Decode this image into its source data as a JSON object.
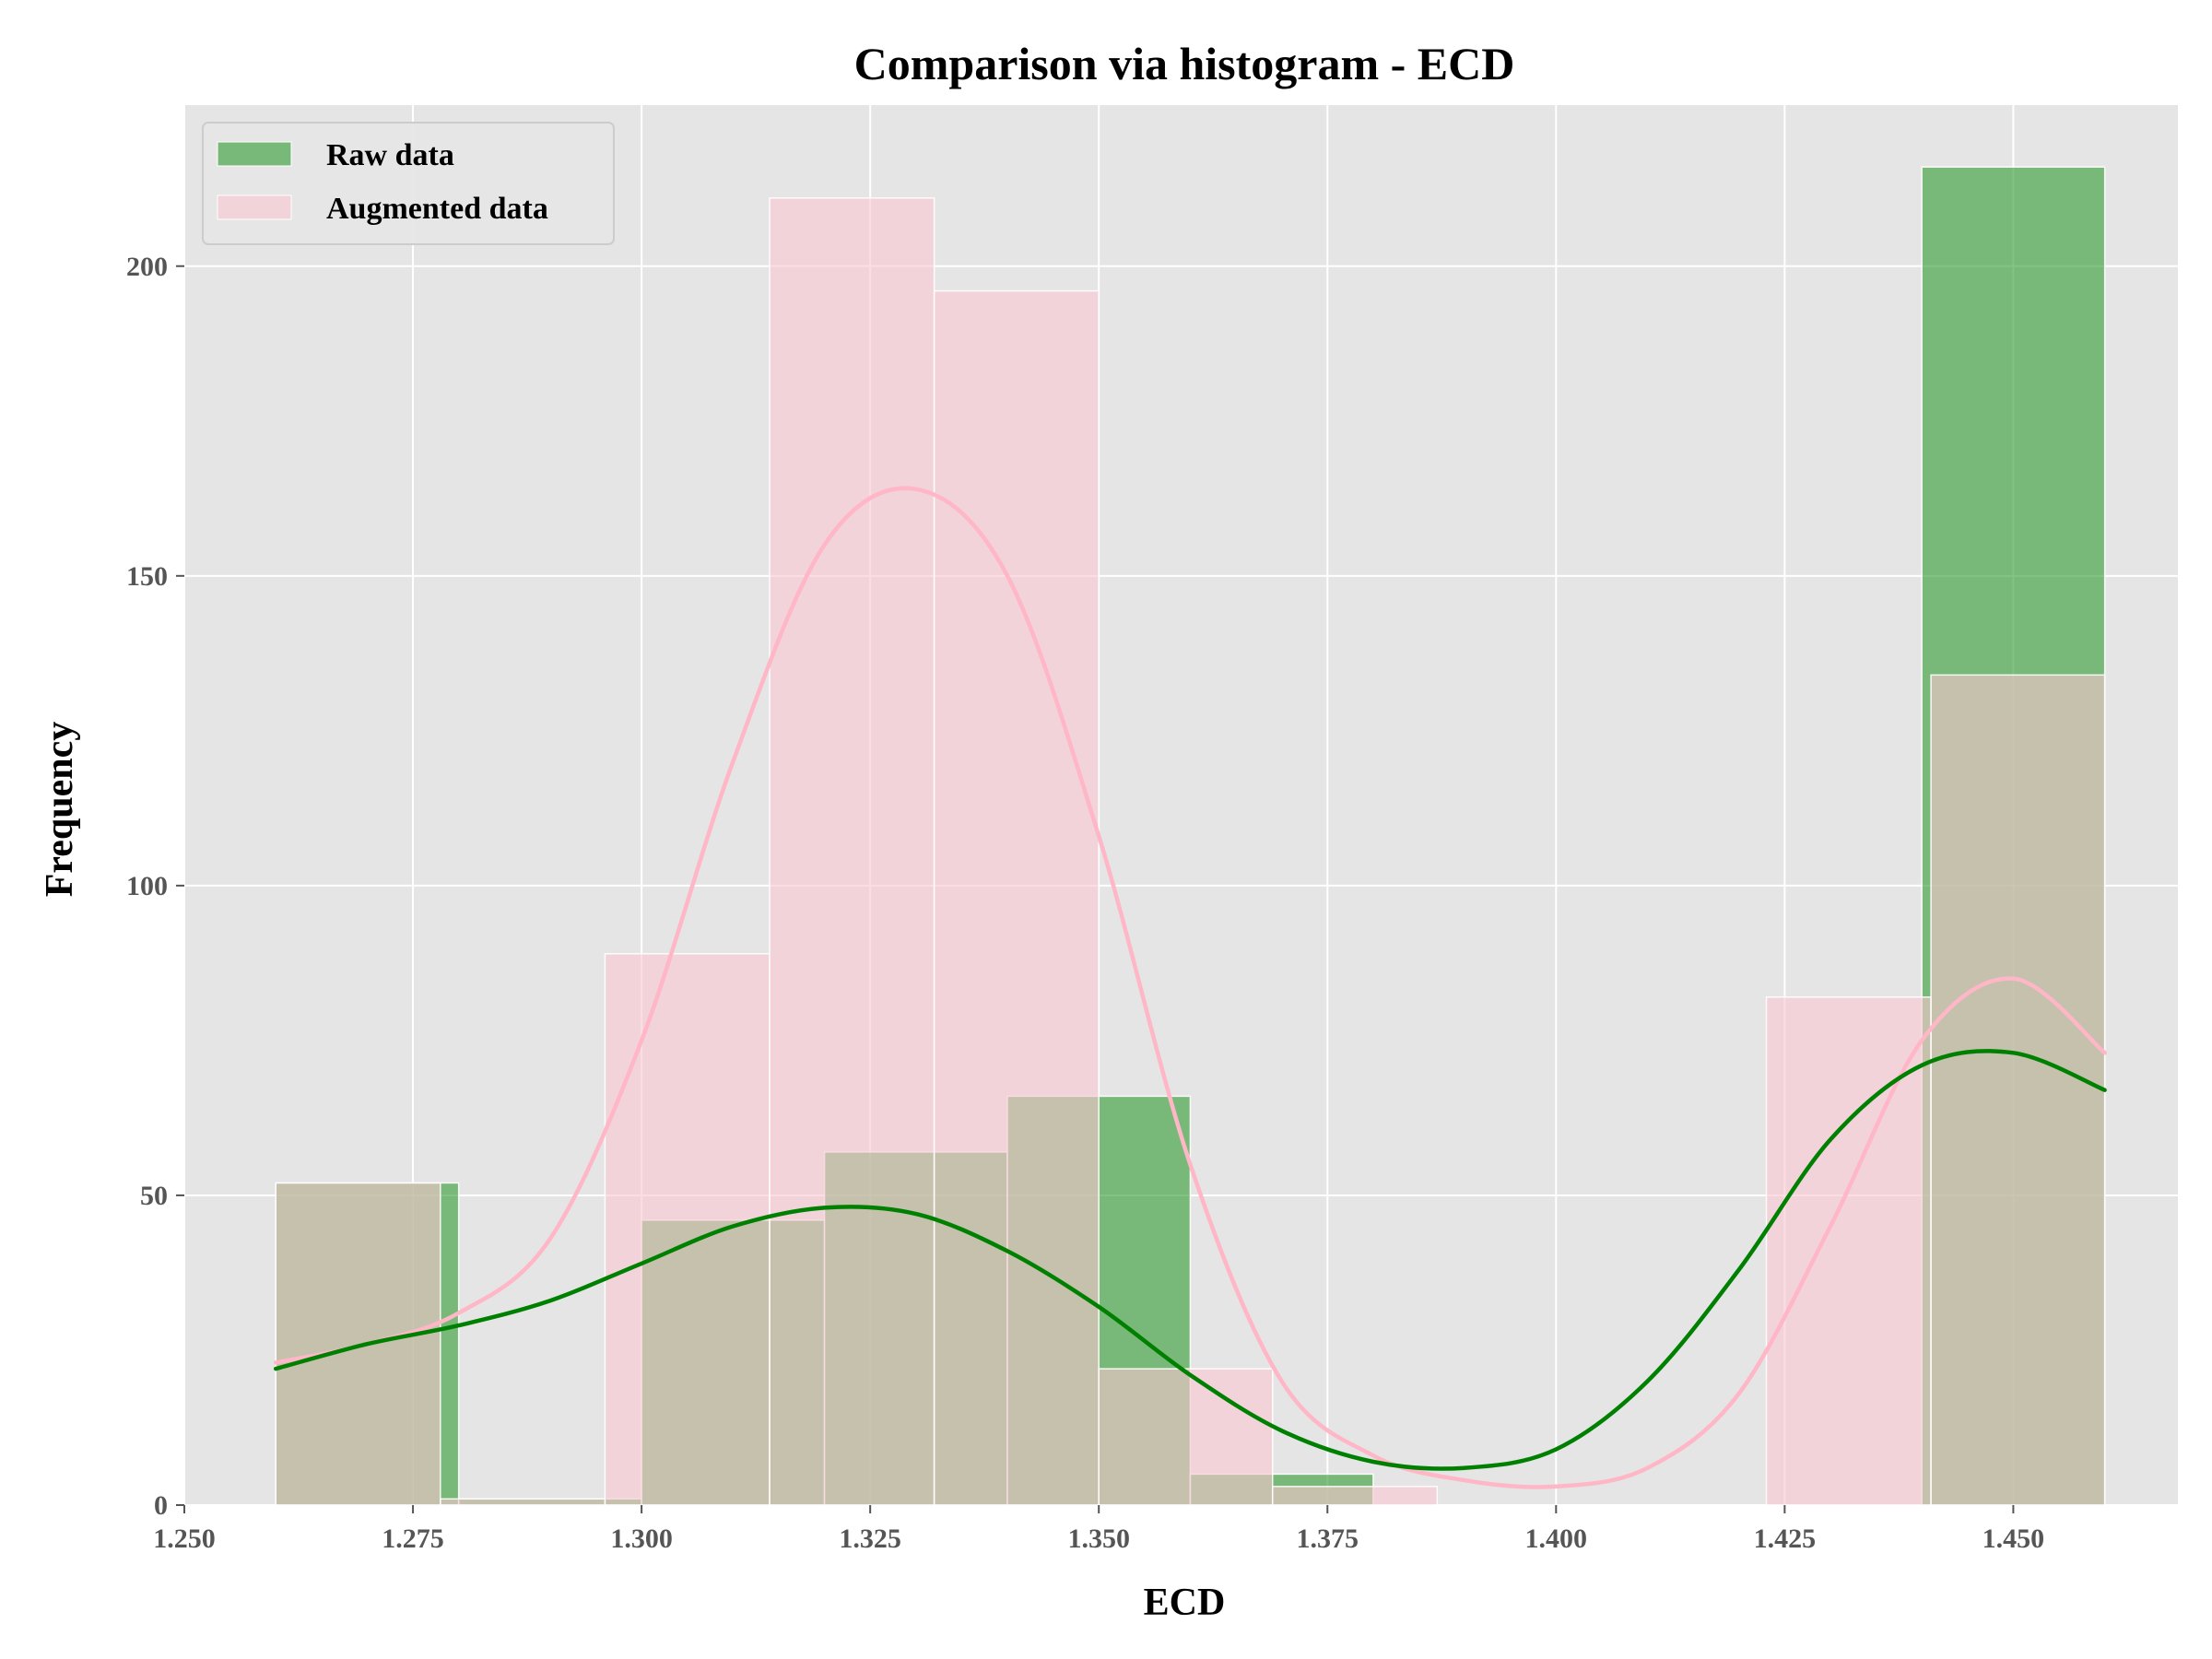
{
  "chart_data": {
    "type": "bar",
    "subtype": "overlaid-histogram-with-kde",
    "title": "Comparison via histogram - ECD",
    "xlabel": "ECD",
    "ylabel": "Frequency",
    "xlim": [
      1.25,
      1.468
    ],
    "ylim": [
      0,
      226
    ],
    "xticks": [
      1.25,
      1.275,
      1.3,
      1.325,
      1.35,
      1.375,
      1.4,
      1.425,
      1.45
    ],
    "xtick_labels": [
      "1.250",
      "1.275",
      "1.300",
      "1.325",
      "1.350",
      "1.375",
      "1.400",
      "1.425",
      "1.450"
    ],
    "yticks": [
      0,
      50,
      100,
      150,
      200
    ],
    "ytick_labels": [
      "0",
      "50",
      "100",
      "150",
      "200"
    ],
    "grid": true,
    "legend_position": "top-left",
    "background_color": "#e5e5e5",
    "series": [
      {
        "name": "Raw data",
        "color": "#2e9a2e",
        "kde_color": "#008000",
        "bins": [
          {
            "x0": 1.26,
            "x1": 1.28,
            "count": 52
          },
          {
            "x0": 1.28,
            "x1": 1.3,
            "count": 1
          },
          {
            "x0": 1.3,
            "x1": 1.32,
            "count": 46
          },
          {
            "x0": 1.32,
            "x1": 1.34,
            "count": 57
          },
          {
            "x0": 1.34,
            "x1": 1.36,
            "count": 66
          },
          {
            "x0": 1.36,
            "x1": 1.38,
            "count": 5
          },
          {
            "x0": 1.38,
            "x1": 1.4,
            "count": 0
          },
          {
            "x0": 1.4,
            "x1": 1.42,
            "count": 0
          },
          {
            "x0": 1.42,
            "x1": 1.44,
            "count": 0
          },
          {
            "x0": 1.44,
            "x1": 1.46,
            "count": 216
          }
        ],
        "kde": {
          "x": [
            1.26,
            1.27,
            1.28,
            1.29,
            1.3,
            1.31,
            1.32,
            1.33,
            1.34,
            1.35,
            1.36,
            1.37,
            1.38,
            1.39,
            1.4,
            1.41,
            1.42,
            1.43,
            1.44,
            1.45,
            1.46
          ],
          "y": [
            22,
            26,
            29,
            33,
            39,
            45,
            48,
            47,
            41,
            32,
            21,
            12,
            7,
            6,
            9,
            20,
            38,
            59,
            71,
            73,
            67
          ]
        }
      },
      {
        "name": "Augmented data",
        "color": "#f9c6d0",
        "kde_color": "#ffb6c6",
        "bins": [
          {
            "x0": 1.26,
            "x1": 1.278,
            "count": 52
          },
          {
            "x0": 1.278,
            "x1": 1.296,
            "count": 1
          },
          {
            "x0": 1.296,
            "x1": 1.314,
            "count": 89
          },
          {
            "x0": 1.314,
            "x1": 1.332,
            "count": 211
          },
          {
            "x0": 1.332,
            "x1": 1.35,
            "count": 196
          },
          {
            "x0": 1.35,
            "x1": 1.369,
            "count": 22
          },
          {
            "x0": 1.369,
            "x1": 1.387,
            "count": 3
          },
          {
            "x0": 1.387,
            "x1": 1.405,
            "count": 0
          },
          {
            "x0": 1.405,
            "x1": 1.423,
            "count": 0
          },
          {
            "x0": 1.423,
            "x1": 1.441,
            "count": 82
          },
          {
            "x0": 1.441,
            "x1": 1.46,
            "count": 134
          }
        ],
        "kde": {
          "x": [
            1.26,
            1.27,
            1.28,
            1.29,
            1.3,
            1.31,
            1.32,
            1.33,
            1.34,
            1.35,
            1.36,
            1.37,
            1.38,
            1.39,
            1.4,
            1.41,
            1.42,
            1.43,
            1.44,
            1.45,
            1.46
          ],
          "y": [
            23,
            26,
            31,
            43,
            75,
            120,
            155,
            164,
            150,
            108,
            55,
            20,
            8,
            4,
            3,
            6,
            18,
            45,
            75,
            85,
            73
          ]
        }
      }
    ]
  }
}
